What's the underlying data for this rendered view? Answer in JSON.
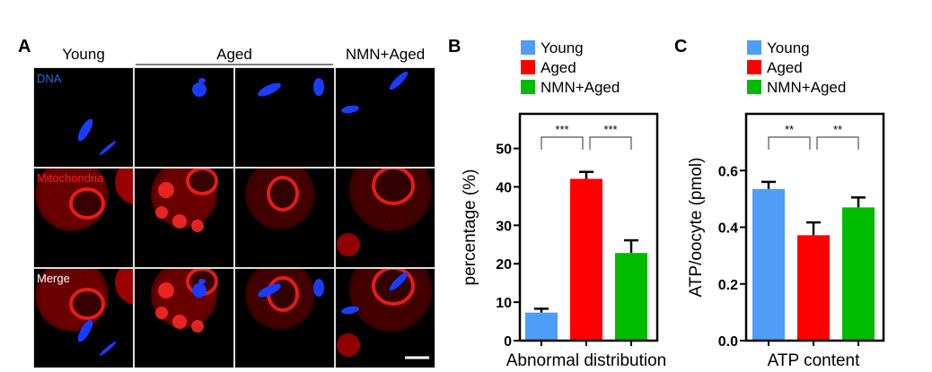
{
  "panel_a": {
    "label": "A",
    "column_titles": [
      "Young",
      "Aged",
      "NMN+Aged"
    ],
    "row_labels": [
      {
        "text": "DNA",
        "color": "#1e6fe0"
      },
      {
        "text": "Mitochondria",
        "color": "#ff1a1a"
      },
      {
        "text": "Merge",
        "color": "#ffffff"
      }
    ],
    "has_scale_bar": true
  },
  "chart_data": [
    {
      "panel_label": "B",
      "type": "bar",
      "categories": [
        "Young",
        "Aged",
        "NMN+Aged"
      ],
      "colors": [
        "#4f9df7",
        "#ff0000",
        "#00bb00"
      ],
      "values": [
        7.3,
        42.1,
        22.8
      ],
      "errors": [
        1.0,
        1.8,
        3.3
      ],
      "xlabel": "Abnormal distribution",
      "ylabel": "percentage (%)",
      "ylim": [
        0,
        59
      ],
      "yticks": [
        "0",
        "10",
        "20",
        "30",
        "40",
        "50"
      ],
      "ytick_values": [
        0,
        10,
        20,
        30,
        40,
        50
      ],
      "significance": [
        {
          "from": 0,
          "to": 1,
          "label": "***"
        },
        {
          "from": 1,
          "to": 2,
          "label": "***"
        }
      ],
      "legend": [
        "Young",
        "Aged",
        "NMN+Aged"
      ],
      "legend_placement": "top",
      "grid": false
    },
    {
      "panel_label": "C",
      "type": "bar",
      "categories": [
        "Young",
        "Aged",
        "NMN+Aged"
      ],
      "colors": [
        "#4f9df7",
        "#ff0000",
        "#00bb00"
      ],
      "values": [
        0.535,
        0.372,
        0.47
      ],
      "errors": [
        0.025,
        0.045,
        0.035
      ],
      "xlabel": "ATP content",
      "ylabel": "ATP/oocyte (pmol)",
      "ylim": [
        0,
        0.8
      ],
      "yticks": [
        "0.0",
        "0.2",
        "0.4",
        "0.6"
      ],
      "ytick_values": [
        0,
        0.2,
        0.4,
        0.6
      ],
      "significance": [
        {
          "from": 0,
          "to": 1,
          "label": "**"
        },
        {
          "from": 1,
          "to": 2,
          "label": "**"
        }
      ],
      "legend": [
        "Young",
        "Aged",
        "NMN+Aged"
      ],
      "legend_placement": "top",
      "grid": false
    }
  ]
}
